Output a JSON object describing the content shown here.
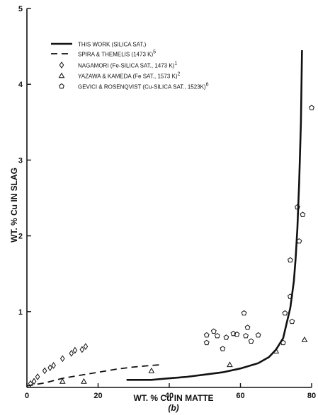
{
  "chart_data": {
    "type": "scatter",
    "xlabel": "WT. % Cu IN MATTE",
    "ylabel": "WT. % Cu IN SLAG",
    "caption": "(b)",
    "xlim": [
      0,
      80
    ],
    "ylim": [
      0,
      5
    ],
    "x_ticks": [
      "0",
      "20",
      "40",
      "60",
      "80"
    ],
    "y_ticks": [
      "1",
      "2",
      "3",
      "4",
      "5"
    ],
    "grid": false,
    "legend_position": "top-left",
    "legend": [
      {
        "label": "THIS WORK (SILICA SAT.)",
        "marker": "solid-line"
      },
      {
        "label": "SPIRA & THEMELIS (1473 K)",
        "superscript": "5",
        "marker": "dashed-line"
      },
      {
        "label": "NAGAMORI (Fe-SILICA SAT., 1473 K)",
        "superscript": "1",
        "marker": "diamond"
      },
      {
        "label": "YAZAWA & KAMEDA (Fe SAT., 1573 K)",
        "superscript": "2",
        "marker": "triangle"
      },
      {
        "label": "GEVICI & ROSENQVIST (Cu-SILICA SAT., 1523K)",
        "superscript": "6",
        "marker": "pentagon"
      }
    ],
    "series": [
      {
        "name": "THIS WORK (SILICA SAT.)",
        "kind": "line",
        "style": "solid",
        "points": [
          [
            28,
            0.1
          ],
          [
            35,
            0.1
          ],
          [
            40,
            0.12
          ],
          [
            45,
            0.14
          ],
          [
            50,
            0.17
          ],
          [
            55,
            0.2
          ],
          [
            60,
            0.25
          ],
          [
            65,
            0.32
          ],
          [
            68,
            0.4
          ],
          [
            70,
            0.5
          ],
          [
            72,
            0.65
          ],
          [
            73,
            0.85
          ],
          [
            74,
            1.05
          ],
          [
            75,
            1.4
          ],
          [
            75.5,
            1.7
          ],
          [
            76,
            2.1
          ],
          [
            76.5,
            2.7
          ],
          [
            77,
            3.5
          ],
          [
            77.3,
            4.45
          ]
        ]
      },
      {
        "name": "SPIRA & THEMELIS (1473 K)",
        "kind": "line",
        "style": "dashed",
        "points": [
          [
            0,
            0.02
          ],
          [
            5,
            0.06
          ],
          [
            10,
            0.12
          ],
          [
            15,
            0.16
          ],
          [
            20,
            0.2
          ],
          [
            25,
            0.24
          ],
          [
            30,
            0.27
          ],
          [
            35,
            0.29
          ],
          [
            38,
            0.3
          ]
        ]
      },
      {
        "name": "NAGAMORI (Fe-SILICA SAT., 1473 K)",
        "kind": "scatter",
        "marker": "diamond",
        "points": [
          [
            1,
            0.05
          ],
          [
            2,
            0.08
          ],
          [
            3,
            0.14
          ],
          [
            5,
            0.22
          ],
          [
            6.5,
            0.26
          ],
          [
            7.5,
            0.29
          ],
          [
            10,
            0.38
          ],
          [
            12.5,
            0.45
          ],
          [
            13.5,
            0.49
          ],
          [
            15.5,
            0.5
          ],
          [
            16.5,
            0.54
          ]
        ]
      },
      {
        "name": "YAZAWA & KAMEDA (Fe SAT., 1573 K)",
        "kind": "scatter",
        "marker": "triangle",
        "points": [
          [
            10,
            0.08
          ],
          [
            16,
            0.08
          ],
          [
            35,
            0.22
          ],
          [
            57,
            0.3
          ],
          [
            70,
            0.48
          ],
          [
            78,
            0.63
          ]
        ]
      },
      {
        "name": "GEVICI & ROSENQVIST (Cu-SILICA SAT., 1523K)",
        "kind": "scatter",
        "marker": "pentagon",
        "points": [
          [
            50.5,
            0.69
          ],
          [
            50.5,
            0.59
          ],
          [
            52.5,
            0.74
          ],
          [
            53.5,
            0.68
          ],
          [
            55,
            0.51
          ],
          [
            56,
            0.66
          ],
          [
            58,
            0.71
          ],
          [
            59,
            0.7
          ],
          [
            61,
            0.98
          ],
          [
            61.5,
            0.68
          ],
          [
            62,
            0.79
          ],
          [
            63,
            0.61
          ],
          [
            65,
            0.69
          ],
          [
            72,
            0.59
          ],
          [
            72.5,
            0.98
          ],
          [
            74,
            1.2
          ],
          [
            74.5,
            0.87
          ],
          [
            74,
            1.68
          ],
          [
            76,
            2.38
          ],
          [
            76.5,
            1.93
          ],
          [
            77.5,
            2.28
          ],
          [
            80,
            3.69
          ]
        ]
      }
    ]
  }
}
